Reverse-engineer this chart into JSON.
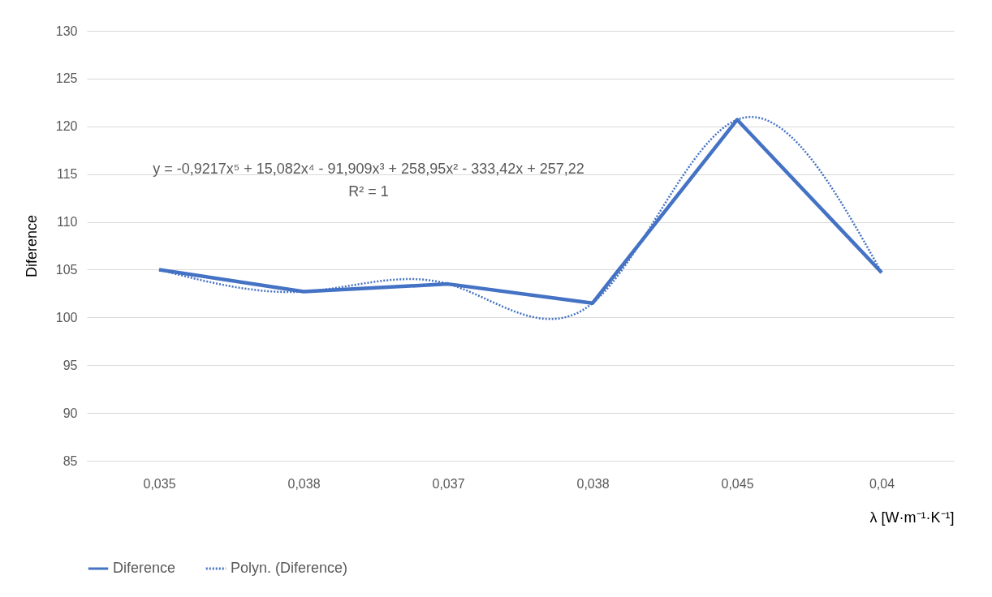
{
  "chart_data": {
    "type": "line",
    "xlabel": "λ [W·m⁻¹·K⁻¹]",
    "ylabel": "Diference",
    "categories": [
      "0,035",
      "0,038",
      "0,037",
      "0,038",
      "0,045",
      "0,04"
    ],
    "ylim": [
      85,
      130
    ],
    "yticks": [
      85,
      90,
      95,
      100,
      105,
      110,
      115,
      120,
      125,
      130
    ],
    "grid": "y",
    "legend": "bottom",
    "annotations": [
      "y = -0,9217x⁵ + 15,082x⁴ - 91,909x³ + 258,95x² - 333,42x + 257,22",
      "R² = 1"
    ],
    "series": [
      {
        "name": "Diference",
        "type": "line",
        "color": "#4472c4",
        "line_style": "solid",
        "values": [
          105.0,
          102.7,
          103.5,
          101.5,
          120.7,
          104.7
        ]
      },
      {
        "name": "Polyn. (Diference)",
        "type": "line",
        "color": "#4472c4",
        "line_style": "dotted",
        "values": [
          105.0,
          102.7,
          103.5,
          101.5,
          120.7,
          104.7
        ]
      }
    ]
  }
}
